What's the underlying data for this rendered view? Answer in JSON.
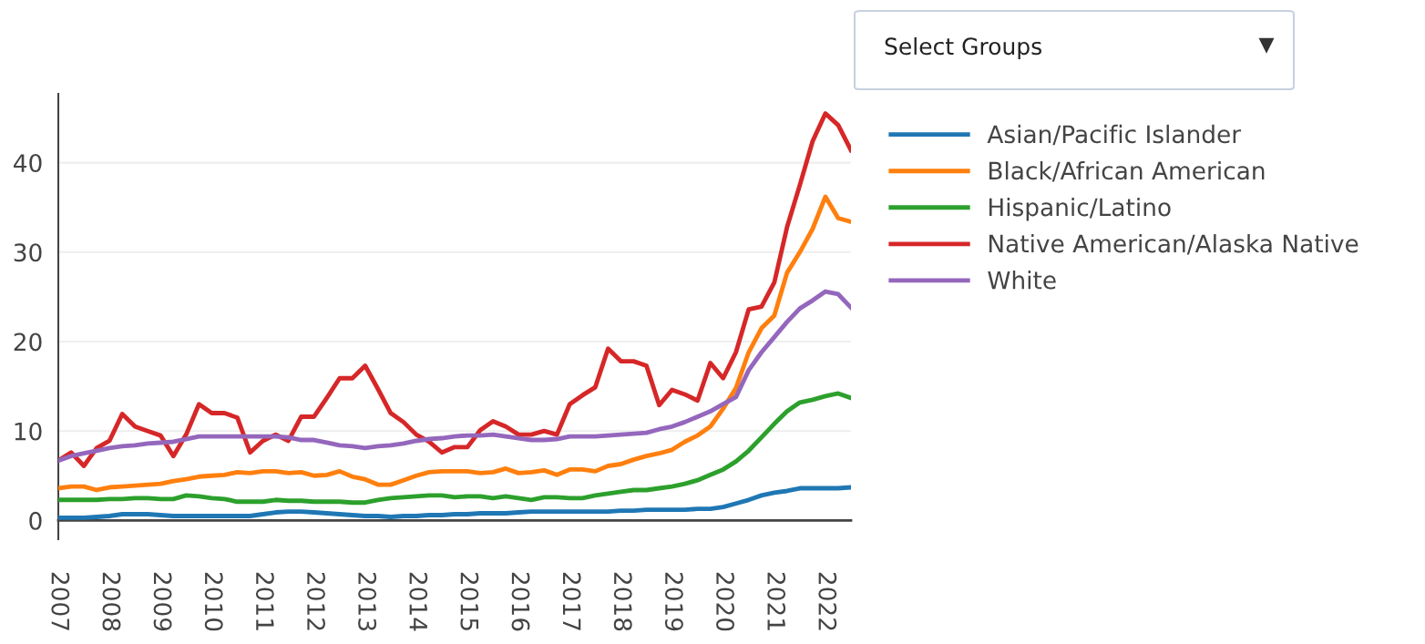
{
  "chart_data": {
    "type": "line",
    "x": [
      2007,
      2007.25,
      2007.5,
      2007.75,
      2008,
      2008.25,
      2008.5,
      2008.75,
      2009,
      2009.25,
      2009.5,
      2009.75,
      2010,
      2010.25,
      2010.5,
      2010.75,
      2011,
      2011.25,
      2011.5,
      2011.75,
      2012,
      2012.25,
      2012.5,
      2012.75,
      2013,
      2013.25,
      2013.5,
      2013.75,
      2014,
      2014.25,
      2014.5,
      2014.75,
      2015,
      2015.25,
      2015.5,
      2015.75,
      2016,
      2016.25,
      2016.5,
      2016.75,
      2017,
      2017.25,
      2017.5,
      2017.75,
      2018,
      2018.25,
      2018.5,
      2018.75,
      2019,
      2019.25,
      2019.5,
      2019.75,
      2020,
      2020.25,
      2020.5,
      2020.75,
      2021,
      2021.25,
      2021.5,
      2021.75,
      2022,
      2022.25,
      2022.5
    ],
    "series": [
      {
        "name": "Asian/Pacific Islander",
        "color": "#1f77b4",
        "values": [
          0.3,
          0.3,
          0.3,
          0.4,
          0.5,
          0.7,
          0.7,
          0.7,
          0.6,
          0.5,
          0.5,
          0.5,
          0.5,
          0.5,
          0.5,
          0.5,
          0.7,
          0.9,
          1.0,
          1.0,
          0.9,
          0.8,
          0.7,
          0.6,
          0.5,
          0.5,
          0.4,
          0.5,
          0.5,
          0.6,
          0.6,
          0.7,
          0.7,
          0.8,
          0.8,
          0.8,
          0.9,
          1.0,
          1.0,
          1.0,
          1.0,
          1.0,
          1.0,
          1.0,
          1.1,
          1.1,
          1.2,
          1.2,
          1.2,
          1.2,
          1.3,
          1.3,
          1.5,
          1.9,
          2.3,
          2.8,
          3.1,
          3.3,
          3.6,
          3.6,
          3.6,
          3.6,
          3.7
        ]
      },
      {
        "name": "Black/African American",
        "color": "#ff7f0e",
        "values": [
          3.6,
          3.8,
          3.8,
          3.4,
          3.7,
          3.8,
          3.9,
          4.0,
          4.1,
          4.4,
          4.6,
          4.9,
          5.0,
          5.1,
          5.4,
          5.3,
          5.5,
          5.5,
          5.3,
          5.4,
          5.0,
          5.1,
          5.5,
          4.9,
          4.6,
          4.0,
          4.0,
          4.5,
          5.0,
          5.4,
          5.5,
          5.5,
          5.5,
          5.3,
          5.4,
          5.8,
          5.3,
          5.4,
          5.6,
          5.1,
          5.7,
          5.7,
          5.5,
          6.1,
          6.3,
          6.8,
          7.2,
          7.5,
          7.9,
          8.8,
          9.5,
          10.5,
          12.5,
          14.8,
          18.8,
          21.5,
          22.9,
          27.7,
          30.0,
          32.6,
          36.2,
          33.8,
          33.4
        ]
      },
      {
        "name": "Hispanic/Latino",
        "color": "#2ca02c",
        "values": [
          2.3,
          2.3,
          2.3,
          2.3,
          2.4,
          2.4,
          2.5,
          2.5,
          2.4,
          2.4,
          2.8,
          2.7,
          2.5,
          2.4,
          2.1,
          2.1,
          2.1,
          2.3,
          2.2,
          2.2,
          2.1,
          2.1,
          2.1,
          2.0,
          2.0,
          2.3,
          2.5,
          2.6,
          2.7,
          2.8,
          2.8,
          2.6,
          2.7,
          2.7,
          2.5,
          2.7,
          2.5,
          2.3,
          2.6,
          2.6,
          2.5,
          2.5,
          2.8,
          3.0,
          3.2,
          3.4,
          3.4,
          3.6,
          3.8,
          4.1,
          4.5,
          5.1,
          5.7,
          6.6,
          7.8,
          9.3,
          10.8,
          12.2,
          13.2,
          13.5,
          13.9,
          14.2,
          13.7
        ]
      },
      {
        "name": "Native American/Alaska Native",
        "color": "#d62728",
        "values": [
          6.7,
          7.6,
          6.1,
          8.1,
          8.9,
          11.9,
          10.5,
          10.0,
          9.5,
          7.2,
          9.6,
          13.0,
          12.0,
          12.0,
          11.5,
          7.6,
          8.9,
          9.6,
          8.9,
          11.6,
          11.6,
          13.7,
          15.9,
          15.9,
          17.3,
          14.7,
          12.0,
          11.0,
          9.6,
          8.8,
          7.6,
          8.2,
          8.2,
          10.1,
          11.1,
          10.5,
          9.6,
          9.6,
          10.0,
          9.6,
          13.0,
          14.0,
          14.9,
          19.2,
          17.8,
          17.8,
          17.3,
          12.9,
          14.6,
          14.1,
          13.4,
          17.6,
          15.9,
          18.8,
          23.6,
          23.9,
          26.6,
          32.8,
          37.5,
          42.4,
          45.5,
          44.2,
          41.4
        ]
      },
      {
        "name": "White",
        "color": "#9467bd",
        "values": [
          6.7,
          7.2,
          7.5,
          7.8,
          8.1,
          8.3,
          8.4,
          8.6,
          8.7,
          8.8,
          9.1,
          9.4,
          9.4,
          9.4,
          9.4,
          9.4,
          9.4,
          9.4,
          9.3,
          9.0,
          9.0,
          8.7,
          8.4,
          8.3,
          8.1,
          8.3,
          8.4,
          8.6,
          8.9,
          9.1,
          9.2,
          9.4,
          9.5,
          9.5,
          9.6,
          9.4,
          9.2,
          9.0,
          9.0,
          9.1,
          9.4,
          9.4,
          9.4,
          9.5,
          9.6,
          9.7,
          9.8,
          10.2,
          10.5,
          11.0,
          11.6,
          12.2,
          13.0,
          13.8,
          16.8,
          18.8,
          20.5,
          22.2,
          23.7,
          24.6,
          25.6,
          25.3,
          23.8
        ]
      }
    ],
    "xlim": [
      2007,
      2022.5
    ],
    "xticks": [
      2007,
      2008,
      2009,
      2010,
      2011,
      2012,
      2013,
      2014,
      2015,
      2016,
      2017,
      2018,
      2019,
      2020,
      2021,
      2022
    ],
    "ylim": [
      -2.1,
      47.7
    ],
    "yticks": [
      0,
      10,
      20,
      30,
      40
    ],
    "grid": "y",
    "legend": "right",
    "marker": "none",
    "line_style": "solid",
    "annotations": [
      "Select Groups",
      "▼"
    ]
  }
}
